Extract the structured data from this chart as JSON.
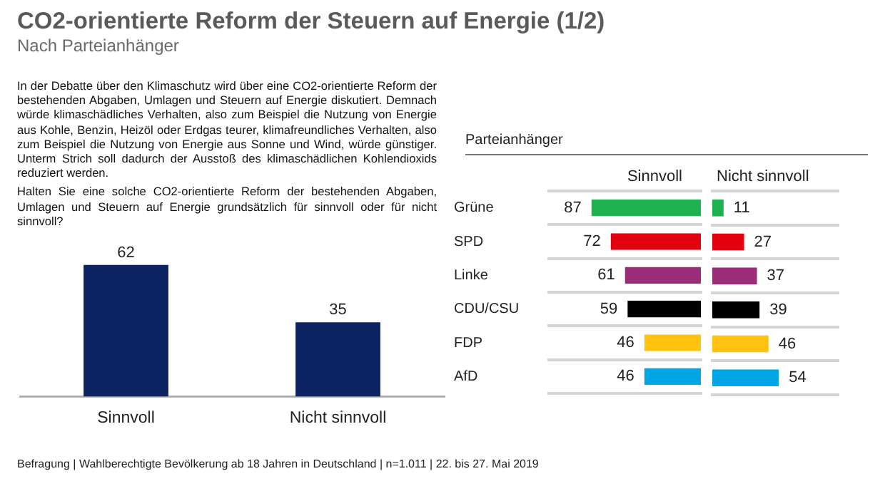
{
  "chart_data": [
    {
      "type": "bar",
      "title": "CO2-orientierte Reform der Steuern auf Energie (1/2)",
      "subtitle": "Nach Parteianhänger",
      "categories": [
        "Sinnvoll",
        "Nicht sinnvoll"
      ],
      "values": [
        62,
        35
      ],
      "color": "#0c2261",
      "tick_labels": "x",
      "grid": false,
      "data_labels": true,
      "annotations": [
        "In der Debatte über den Klimaschutz wird über eine CO2-orientierte Reform der bestehenden Abgaben, Umlagen und Steuern auf Energie diskutiert. Demnach würde klimaschädliches Verhalten, also zum Beispiel die Nutzung von Energie aus Kohle, Benzin, Heizöl oder Erdgas teurer, klimafreundliches Verhalten, also zum Beispiel die Nutzung von Energie aus Sonne und Wind, würde günstiger. Unterm Strich soll dadurch der Ausstoß des klimaschädlichen Kohlendioxids reduziert werden.",
        "Halten Sie eine solche CO2-orientierte Reform der bestehenden Abgaben, Umlagen und Steuern auf Energie grundsätzlich für sinnvoll oder für nicht sinnvoll?",
        "Befragung | Wahlberechtigte Bevölkerung ab 18 Jahren in Deutschland | n=1.011 | 22. bis 27. Mai 2019"
      ]
    },
    {
      "type": "bar",
      "orientation": "horizontal",
      "title": "Parteianhänger",
      "categories": [
        "Grüne",
        "SPD",
        "Linke",
        "CDU/CSU",
        "FDP",
        "AfD"
      ],
      "xlim": [
        120,
        0
      ],
      "tick_labels": "y",
      "grid": "y",
      "data_labels": true,
      "series": [
        {
          "name": "Sinnvoll",
          "values": [
            87,
            72,
            61,
            59,
            46,
            46
          ],
          "colors": [
            "#1fb04f",
            "#e3000f",
            "#9b2c78",
            "#000000",
            "#ffc20e",
            "#00a6e3"
          ]
        }
      ]
    },
    {
      "type": "bar",
      "orientation": "horizontal",
      "categories": [
        null,
        null,
        null,
        null,
        null,
        null
      ],
      "tick_labels": false,
      "grid": "y",
      "data_labels": true,
      "series": [
        {
          "name": "Nicht sinnvoll",
          "values": [
            11,
            27,
            37,
            39,
            46,
            54
          ],
          "colors": [
            "#1fb04f",
            "#e3000f",
            "#9b2c78",
            "#000000",
            "#ffc20e",
            "#00a6e3"
          ]
        }
      ]
    }
  ]
}
